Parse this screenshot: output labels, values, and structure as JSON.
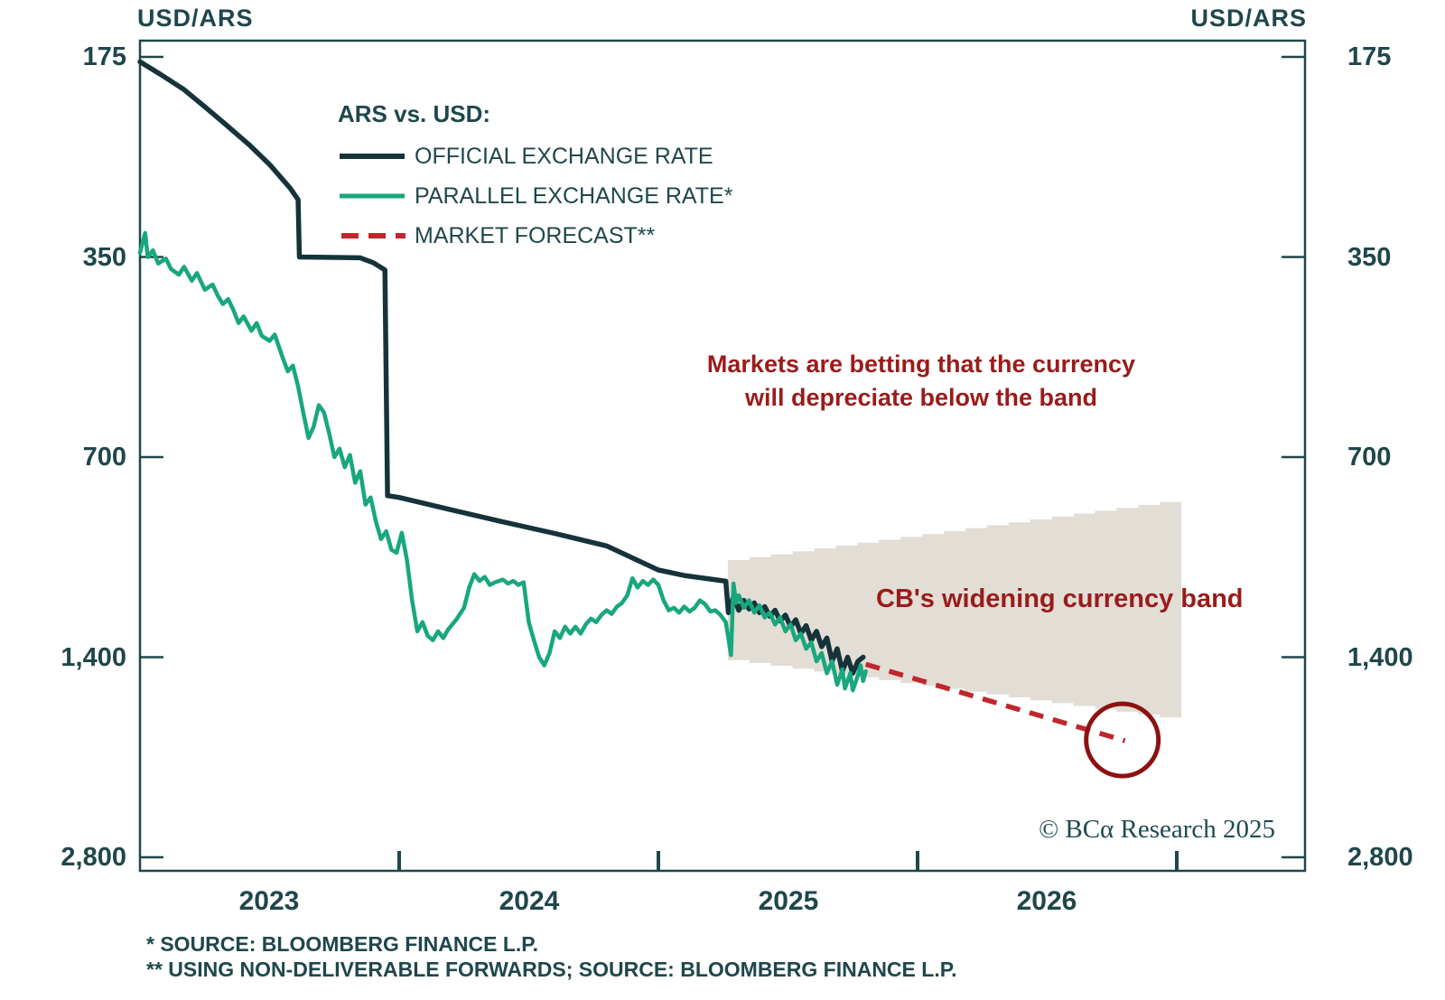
{
  "titles": {
    "left": "USD/ARS",
    "right": "USD/ARS"
  },
  "axis": {
    "y_tick_labels": [
      "175",
      "350",
      "700",
      "1,400",
      "2,800"
    ],
    "y_tick_values": [
      175,
      350,
      700,
      1400,
      2800
    ],
    "x_year_labels": [
      "2023",
      "2024",
      "2025",
      "2026"
    ],
    "x_tick_years": [
      2024,
      2025,
      2026,
      2027
    ]
  },
  "legend": {
    "title": "ARS vs. USD:",
    "items": [
      {
        "label": "OFFICIAL EXCHANGE RATE",
        "color": "#16333a",
        "style": "solid"
      },
      {
        "label": "PARALLEL EXCHANGE RATE*",
        "color": "#18a77e",
        "style": "solid"
      },
      {
        "label": "MARKET FORECAST**",
        "color": "#c0272b",
        "style": "dashed"
      }
    ]
  },
  "annotations": {
    "betting_line1": "Markets are betting that the currency",
    "betting_line2": "will depreciate below the band",
    "band_label": "CB's widening currency band",
    "copyright": "© BCα Research 2025"
  },
  "footnotes": {
    "line1": "* SOURCE: BLOOMBERG FINANCE L.P.",
    "line2": "** USING NON-DELIVERABLE FORWARDS; SOURCE: BLOOMBERG FINANCE L.P."
  },
  "colors": {
    "axis": "#1f474b",
    "official": "#16333a",
    "parallel": "#18a77e",
    "forecast": "#c0272b",
    "band_fill": "#e2ded6",
    "annotation": "#9b1b1b",
    "circle": "#8e1111"
  },
  "chart_data": {
    "type": "line",
    "title": "USD/ARS (inverted log scale, ARS per USD)",
    "ylabel": "USD/ARS",
    "y_axis": {
      "ticks": [
        175,
        350,
        700,
        1400,
        2800
      ],
      "log": true,
      "inverted": true
    },
    "x_axis": {
      "range": [
        2023.0,
        2027.5
      ],
      "year_ticks": [
        2024,
        2025,
        2026,
        2027
      ]
    },
    "series": [
      {
        "name": "OFFICIAL EXCHANGE RATE",
        "color": "#16333a",
        "stroke_width": 5.5,
        "dashed": false,
        "points": [
          [
            2023.0,
            178
          ],
          [
            2023.08,
            186
          ],
          [
            2023.17,
            196
          ],
          [
            2023.25,
            208
          ],
          [
            2023.33,
            221
          ],
          [
            2023.42,
            237
          ],
          [
            2023.5,
            254
          ],
          [
            2023.58,
            276
          ],
          [
            2023.61,
            287
          ],
          [
            2023.615,
            350
          ],
          [
            2023.85,
            351
          ],
          [
            2023.9,
            357
          ],
          [
            2023.945,
            366
          ],
          [
            2023.955,
            800
          ],
          [
            2024.0,
            805
          ],
          [
            2024.2,
            840
          ],
          [
            2024.4,
            876
          ],
          [
            2024.6,
            912
          ],
          [
            2024.8,
            952
          ],
          [
            2025.0,
            1035
          ],
          [
            2025.1,
            1055
          ],
          [
            2025.2,
            1068
          ],
          [
            2025.26,
            1076
          ],
          [
            2025.27,
            1200
          ],
          [
            2025.29,
            1135
          ],
          [
            2025.31,
            1190
          ],
          [
            2025.33,
            1150
          ],
          [
            2025.35,
            1185
          ],
          [
            2025.37,
            1160
          ],
          [
            2025.39,
            1200
          ],
          [
            2025.41,
            1175
          ],
          [
            2025.43,
            1215
          ],
          [
            2025.45,
            1190
          ],
          [
            2025.47,
            1235
          ],
          [
            2025.49,
            1210
          ],
          [
            2025.51,
            1260
          ],
          [
            2025.53,
            1230
          ],
          [
            2025.55,
            1290
          ],
          [
            2025.57,
            1255
          ],
          [
            2025.59,
            1320
          ],
          [
            2025.61,
            1280
          ],
          [
            2025.63,
            1350
          ],
          [
            2025.65,
            1310
          ],
          [
            2025.67,
            1420
          ],
          [
            2025.69,
            1360
          ],
          [
            2025.71,
            1470
          ],
          [
            2025.73,
            1400
          ],
          [
            2025.75,
            1480
          ],
          [
            2025.77,
            1420
          ],
          [
            2025.79,
            1400
          ]
        ]
      },
      {
        "name": "PARALLEL EXCHANGE RATE",
        "color": "#18a77e",
        "stroke_width": 4.5,
        "dashed": false,
        "points": [
          [
            2023.0,
            345
          ],
          [
            2023.02,
            322
          ],
          [
            2023.03,
            350
          ],
          [
            2023.05,
            342
          ],
          [
            2023.07,
            358
          ],
          [
            2023.1,
            352
          ],
          [
            2023.12,
            365
          ],
          [
            2023.15,
            372
          ],
          [
            2023.17,
            362
          ],
          [
            2023.2,
            380
          ],
          [
            2023.22,
            370
          ],
          [
            2023.25,
            392
          ],
          [
            2023.28,
            385
          ],
          [
            2023.3,
            400
          ],
          [
            2023.32,
            412
          ],
          [
            2023.34,
            405
          ],
          [
            2023.36,
            420
          ],
          [
            2023.38,
            440
          ],
          [
            2023.4,
            430
          ],
          [
            2023.43,
            452
          ],
          [
            2023.45,
            440
          ],
          [
            2023.47,
            460
          ],
          [
            2023.5,
            468
          ],
          [
            2023.52,
            458
          ],
          [
            2023.55,
            495
          ],
          [
            2023.57,
            520
          ],
          [
            2023.59,
            510
          ],
          [
            2023.61,
            548
          ],
          [
            2023.63,
            600
          ],
          [
            2023.65,
            655
          ],
          [
            2023.67,
            630
          ],
          [
            2023.69,
            585
          ],
          [
            2023.71,
            600
          ],
          [
            2023.73,
            645
          ],
          [
            2023.75,
            700
          ],
          [
            2023.77,
            680
          ],
          [
            2023.79,
            725
          ],
          [
            2023.81,
            695
          ],
          [
            2023.83,
            765
          ],
          [
            2023.85,
            735
          ],
          [
            2023.87,
            825
          ],
          [
            2023.89,
            805
          ],
          [
            2023.91,
            875
          ],
          [
            2023.93,
            930
          ],
          [
            2023.95,
            905
          ],
          [
            2023.97,
            965
          ],
          [
            2023.99,
            975
          ],
          [
            2024.01,
            910
          ],
          [
            2024.03,
            1000
          ],
          [
            2024.05,
            1150
          ],
          [
            2024.07,
            1280
          ],
          [
            2024.09,
            1240
          ],
          [
            2024.11,
            1300
          ],
          [
            2024.13,
            1320
          ],
          [
            2024.15,
            1280
          ],
          [
            2024.17,
            1310
          ],
          [
            2024.19,
            1270
          ],
          [
            2024.22,
            1230
          ],
          [
            2024.25,
            1180
          ],
          [
            2024.27,
            1100
          ],
          [
            2024.29,
            1050
          ],
          [
            2024.31,
            1075
          ],
          [
            2024.33,
            1060
          ],
          [
            2024.35,
            1090
          ],
          [
            2024.37,
            1080
          ],
          [
            2024.4,
            1070
          ],
          [
            2024.42,
            1085
          ],
          [
            2024.44,
            1075
          ],
          [
            2024.46,
            1090
          ],
          [
            2024.48,
            1080
          ],
          [
            2024.5,
            1240
          ],
          [
            2024.52,
            1320
          ],
          [
            2024.54,
            1400
          ],
          [
            2024.56,
            1440
          ],
          [
            2024.58,
            1380
          ],
          [
            2024.6,
            1280
          ],
          [
            2024.62,
            1310
          ],
          [
            2024.64,
            1260
          ],
          [
            2024.66,
            1290
          ],
          [
            2024.68,
            1260
          ],
          [
            2024.7,
            1290
          ],
          [
            2024.72,
            1250
          ],
          [
            2024.74,
            1225
          ],
          [
            2024.76,
            1240
          ],
          [
            2024.78,
            1210
          ],
          [
            2024.8,
            1190
          ],
          [
            2024.82,
            1205
          ],
          [
            2024.84,
            1175
          ],
          [
            2024.86,
            1160
          ],
          [
            2024.88,
            1130
          ],
          [
            2024.9,
            1065
          ],
          [
            2024.92,
            1100
          ],
          [
            2024.94,
            1075
          ],
          [
            2024.96,
            1090
          ],
          [
            2024.98,
            1070
          ],
          [
            2025.0,
            1090
          ],
          [
            2025.02,
            1150
          ],
          [
            2025.04,
            1190
          ],
          [
            2025.06,
            1180
          ],
          [
            2025.08,
            1200
          ],
          [
            2025.1,
            1175
          ],
          [
            2025.12,
            1195
          ],
          [
            2025.14,
            1180
          ],
          [
            2025.16,
            1150
          ],
          [
            2025.18,
            1165
          ],
          [
            2025.2,
            1195
          ],
          [
            2025.22,
            1190
          ],
          [
            2025.24,
            1210
          ],
          [
            2025.26,
            1240
          ],
          [
            2025.27,
            1310
          ],
          [
            2025.28,
            1390
          ],
          [
            2025.29,
            1085
          ],
          [
            2025.3,
            1160
          ],
          [
            2025.31,
            1130
          ],
          [
            2025.33,
            1180
          ],
          [
            2025.35,
            1150
          ],
          [
            2025.37,
            1200
          ],
          [
            2025.39,
            1170
          ],
          [
            2025.41,
            1220
          ],
          [
            2025.43,
            1200
          ],
          [
            2025.45,
            1250
          ],
          [
            2025.47,
            1220
          ],
          [
            2025.49,
            1280
          ],
          [
            2025.51,
            1250
          ],
          [
            2025.53,
            1320
          ],
          [
            2025.55,
            1290
          ],
          [
            2025.57,
            1360
          ],
          [
            2025.59,
            1330
          ],
          [
            2025.61,
            1420
          ],
          [
            2025.63,
            1380
          ],
          [
            2025.65,
            1480
          ],
          [
            2025.67,
            1420
          ],
          [
            2025.69,
            1540
          ],
          [
            2025.71,
            1460
          ],
          [
            2025.72,
            1560
          ],
          [
            2025.74,
            1480
          ],
          [
            2025.75,
            1570
          ],
          [
            2025.77,
            1490
          ],
          [
            2025.78,
            1440
          ],
          [
            2025.79,
            1520
          ],
          [
            2025.8,
            1470
          ]
        ]
      },
      {
        "name": "MARKET FORECAST",
        "color": "#c0272b",
        "stroke_width": 5.5,
        "dashed": true,
        "points": [
          [
            2025.8,
            1435
          ],
          [
            2026.8,
            1870
          ]
        ]
      }
    ],
    "band": {
      "label": "CB's widening currency band",
      "start_year": 2025.268,
      "month_step": 0.0833333,
      "top_start": 1000,
      "bottom_start": 1400,
      "monthly_widening": 0.01,
      "fill": "#e2ded6",
      "top_values": [
        1000,
        990,
        980.1,
        970.3,
        960.6,
        951.0,
        941.5,
        932.1,
        922.7,
        913.5,
        904.4,
        895.3,
        886.4,
        877.5,
        868.7,
        860.0,
        851.4,
        842.9,
        834.5,
        826.1,
        817.9,
        809.7
      ],
      "bottom_values": [
        1400,
        1414,
        1428.1,
        1442.4,
        1456.8,
        1471.4,
        1486.1,
        1501.0,
        1516.0,
        1531.1,
        1546.5,
        1561.9,
        1577.5,
        1593.3,
        1609.2,
        1625.3,
        1641.6,
        1658.0,
        1674.6,
        1691.3,
        1708.2,
        1725.3
      ]
    },
    "forecast_circle": {
      "year": 2026.79,
      "value": 1865,
      "radius_px": 40
    }
  }
}
